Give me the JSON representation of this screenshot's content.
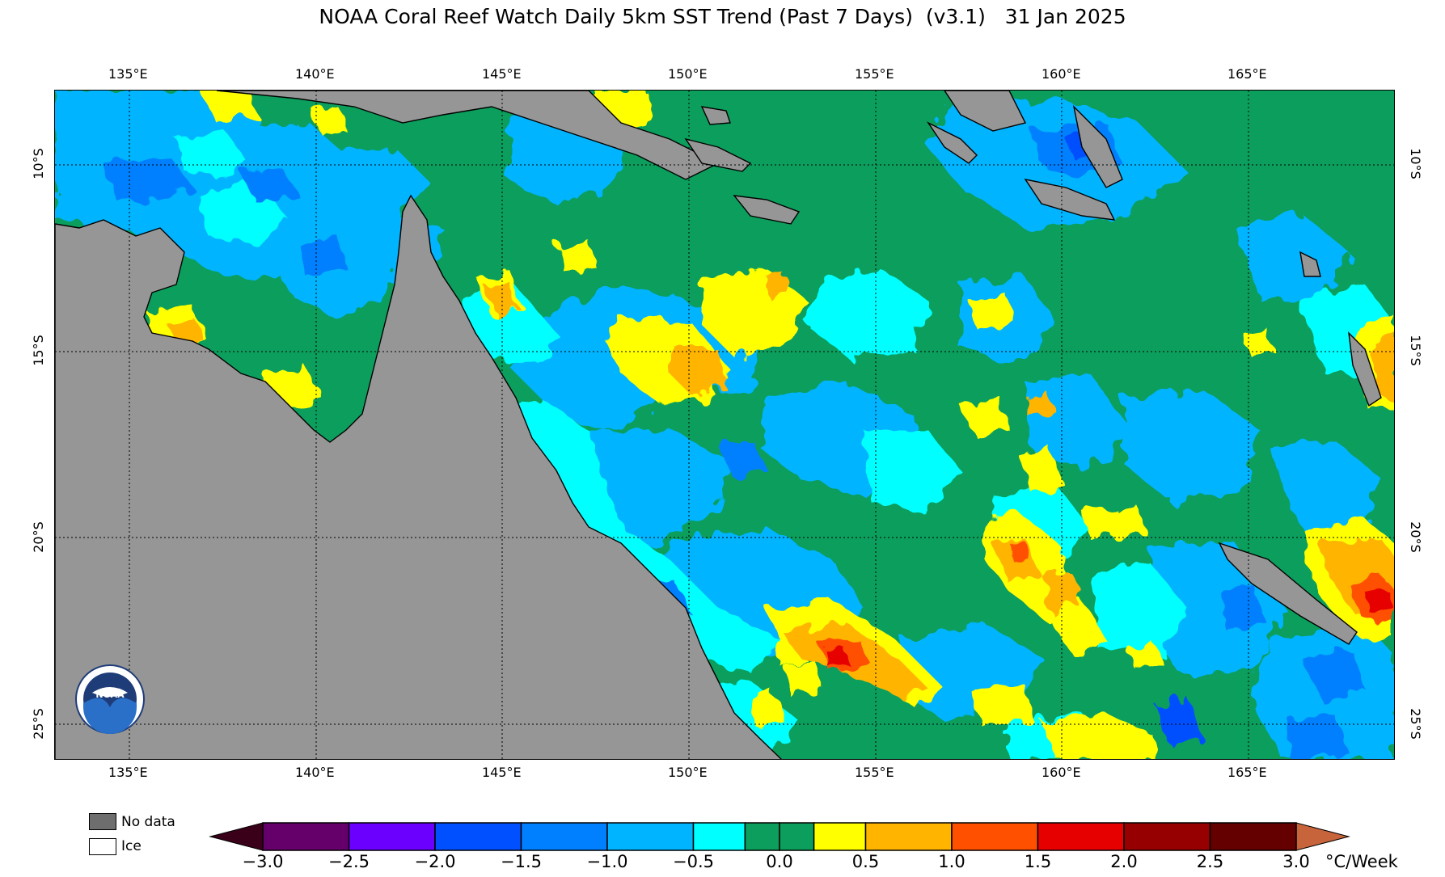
{
  "title": "NOAA Coral Reef Watch Daily 5km SST Trend (Past 7 Days)  (v3.1)   31 Jan 2025",
  "lon_labels": [
    "135°E",
    "140°E",
    "145°E",
    "150°E",
    "155°E",
    "160°E",
    "165°E"
  ],
  "lat_labels": [
    "10°S",
    "15°S",
    "20°S",
    "25°S"
  ],
  "legend": {
    "no_data_label": "No data",
    "ice_label": "Ice",
    "no_data_color": "#6e6e6e",
    "ice_color": "#ffffff",
    "land_color": "#969696"
  },
  "colorbar": {
    "units": "°C/Week",
    "ticks": [
      "−3.0",
      "−2.5",
      "−2.0",
      "−1.5",
      "−1.0",
      "−0.5",
      "0.0",
      "0.5",
      "1.0",
      "1.5",
      "2.0",
      "2.5",
      "3.0"
    ],
    "under_color": "#3a0019",
    "over_color": "#c8643c",
    "bins": [
      {
        "from": -3.0,
        "to": -2.5,
        "color": "#65006b"
      },
      {
        "from": -2.5,
        "to": -2.0,
        "color": "#6b00ff"
      },
      {
        "from": -2.0,
        "to": -1.5,
        "color": "#0050ff"
      },
      {
        "from": -1.5,
        "to": -1.0,
        "color": "#0080ff"
      },
      {
        "from": -1.0,
        "to": -0.5,
        "color": "#00b4ff"
      },
      {
        "from": -0.5,
        "to": -0.2,
        "color": "#00ffff"
      },
      {
        "from": -0.2,
        "to": 0.0,
        "color": "#0c9e5c"
      },
      {
        "from": 0.0,
        "to": 0.2,
        "color": "#0c9e5c"
      },
      {
        "from": 0.2,
        "to": 0.5,
        "color": "#ffff00"
      },
      {
        "from": 0.5,
        "to": 1.0,
        "color": "#ffb400"
      },
      {
        "from": 1.0,
        "to": 1.5,
        "color": "#ff5000"
      },
      {
        "from": 1.5,
        "to": 2.0,
        "color": "#e60000"
      },
      {
        "from": 2.0,
        "to": 2.5,
        "color": "#960000"
      },
      {
        "from": 2.5,
        "to": 3.0,
        "color": "#640000"
      }
    ]
  },
  "map_colors": {
    "ocean_base": "#0c9e5c",
    "cyan": "#00ffff",
    "lightblue": "#00b4ff",
    "blue": "#0080ff",
    "deepblue": "#0050ff",
    "yellow": "#ffff00",
    "orange": "#ffb400",
    "red_orange": "#ff5000",
    "red": "#e60000",
    "land": "#969696",
    "coast": "#000000"
  },
  "logo": {
    "name": "NOAA emblem",
    "text": "NOAA"
  }
}
